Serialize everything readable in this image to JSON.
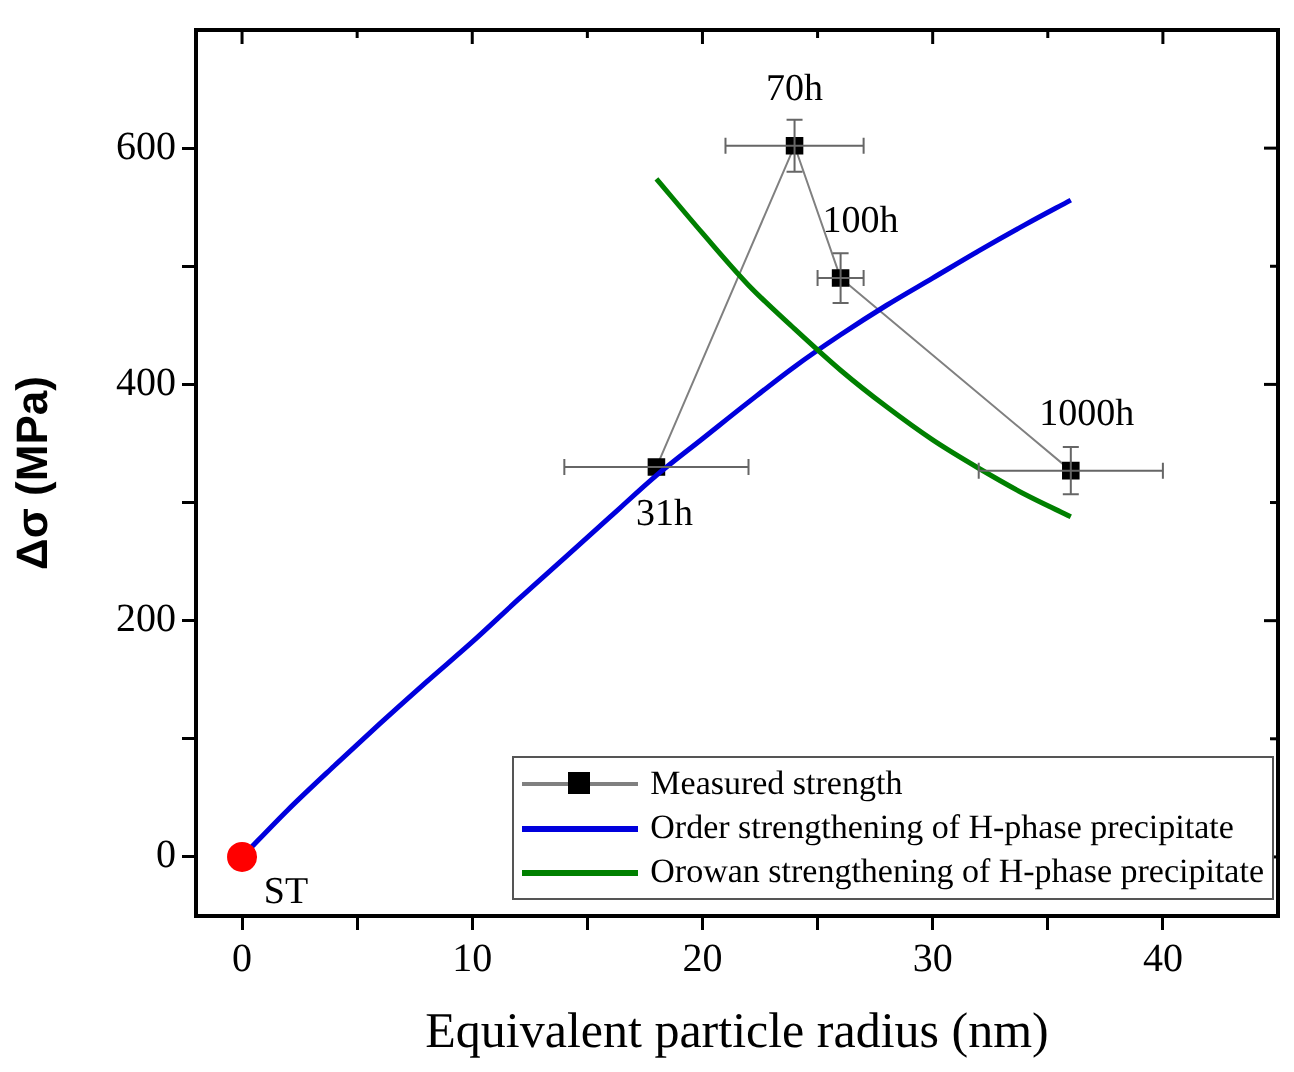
{
  "chart_data": {
    "type": "line",
    "xlabel": "Equivalent particle radius (nm)",
    "ylabel": "Δσ (MPa)",
    "xlim": [
      -2,
      45
    ],
    "xticks": [
      0,
      {
        "value": 5,
        "label": null
      },
      10,
      {
        "value": 15,
        "label": null
      },
      20,
      {
        "value": 25,
        "label": null
      },
      30,
      {
        "value": 35,
        "label": null
      },
      40
    ],
    "ylim": [
      -50,
      700
    ],
    "yticks": [
      0,
      {
        "value": 100,
        "label": null
      },
      200,
      {
        "value": 300,
        "label": null
      },
      400,
      {
        "value": 500,
        "label": null
      },
      600
    ],
    "grid": false,
    "legend": "bottom right",
    "series": [
      {
        "name": "Measured strength",
        "color": "#808080",
        "marker": "square",
        "colors": [
          "#000000",
          "#000000",
          "#000000",
          "#000000"
        ],
        "x": [
          18,
          24,
          26,
          36
        ],
        "values": [
          330,
          602,
          490,
          327
        ],
        "errors": [
          null,
          22,
          21,
          20
        ],
        "xerrors": [
          4,
          3,
          1,
          4
        ]
      },
      {
        "name": "Order strengthening of H-phase precipitate",
        "color": "#0000dd",
        "marker": "none",
        "x": [
          0,
          2,
          4,
          6,
          8,
          10,
          12,
          14,
          16,
          18,
          20,
          22,
          24,
          26,
          28,
          30,
          32,
          34,
          36
        ],
        "values": [
          0,
          40,
          77,
          113,
          148,
          182,
          218,
          253,
          288,
          323,
          354,
          385,
          415,
          442,
          467,
          490,
          513,
          535,
          556
        ]
      },
      {
        "type": "scatter",
        "color": "#ff0000",
        "marker": "circle",
        "x": [
          0
        ],
        "values": [
          0
        ]
      },
      {
        "name": "Orowan strengthening of H-phase precipitate",
        "color": "#008000",
        "marker": "none",
        "x": [
          18,
          20,
          22,
          24,
          26,
          28,
          30,
          32,
          34,
          36
        ],
        "values": [
          574,
          528,
          484,
          447,
          412,
          381,
          353,
          329,
          307,
          288
        ]
      }
    ],
    "annotations": [
      {
        "text": "ST",
        "x": 0,
        "y": 0
      },
      {
        "text": "31h",
        "x": 18,
        "y": 330
      },
      {
        "text": "70h",
        "x": 24,
        "y": 602
      },
      {
        "text": "100h",
        "x": 26,
        "y": 490
      },
      {
        "text": "1000h",
        "x": 36,
        "y": 327
      }
    ]
  }
}
